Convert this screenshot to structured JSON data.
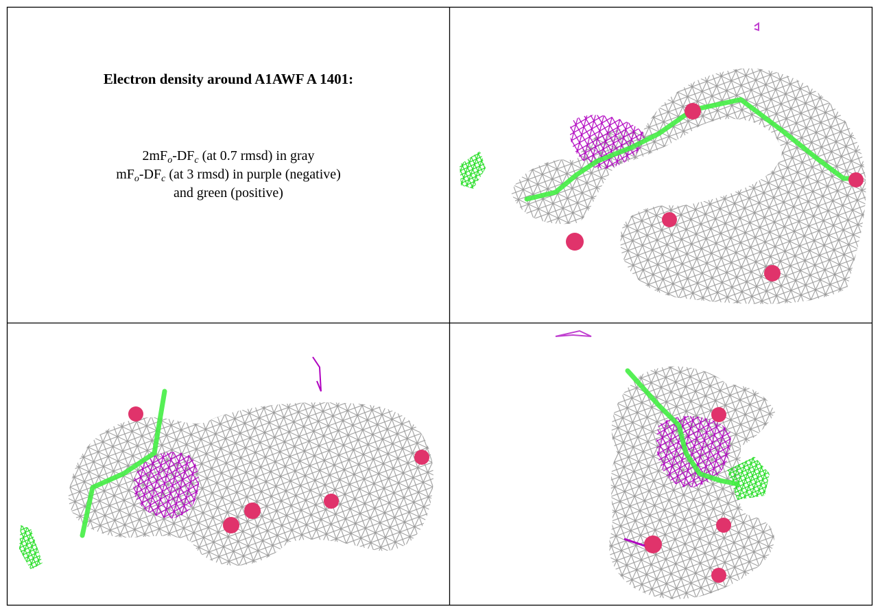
{
  "header": {
    "title": "Electron density around A1AWF A 1401:"
  },
  "legend": [
    {
      "parts": [
        "2mF",
        "o",
        "-DF",
        "c",
        " (at 0.7 rmsd) in gray"
      ]
    },
    {
      "parts": [
        "mF",
        "o",
        "-DF",
        "c",
        " (at 3 rmsd) in purple (negative)"
      ]
    },
    {
      "text": "and green (positive)"
    }
  ]
}
